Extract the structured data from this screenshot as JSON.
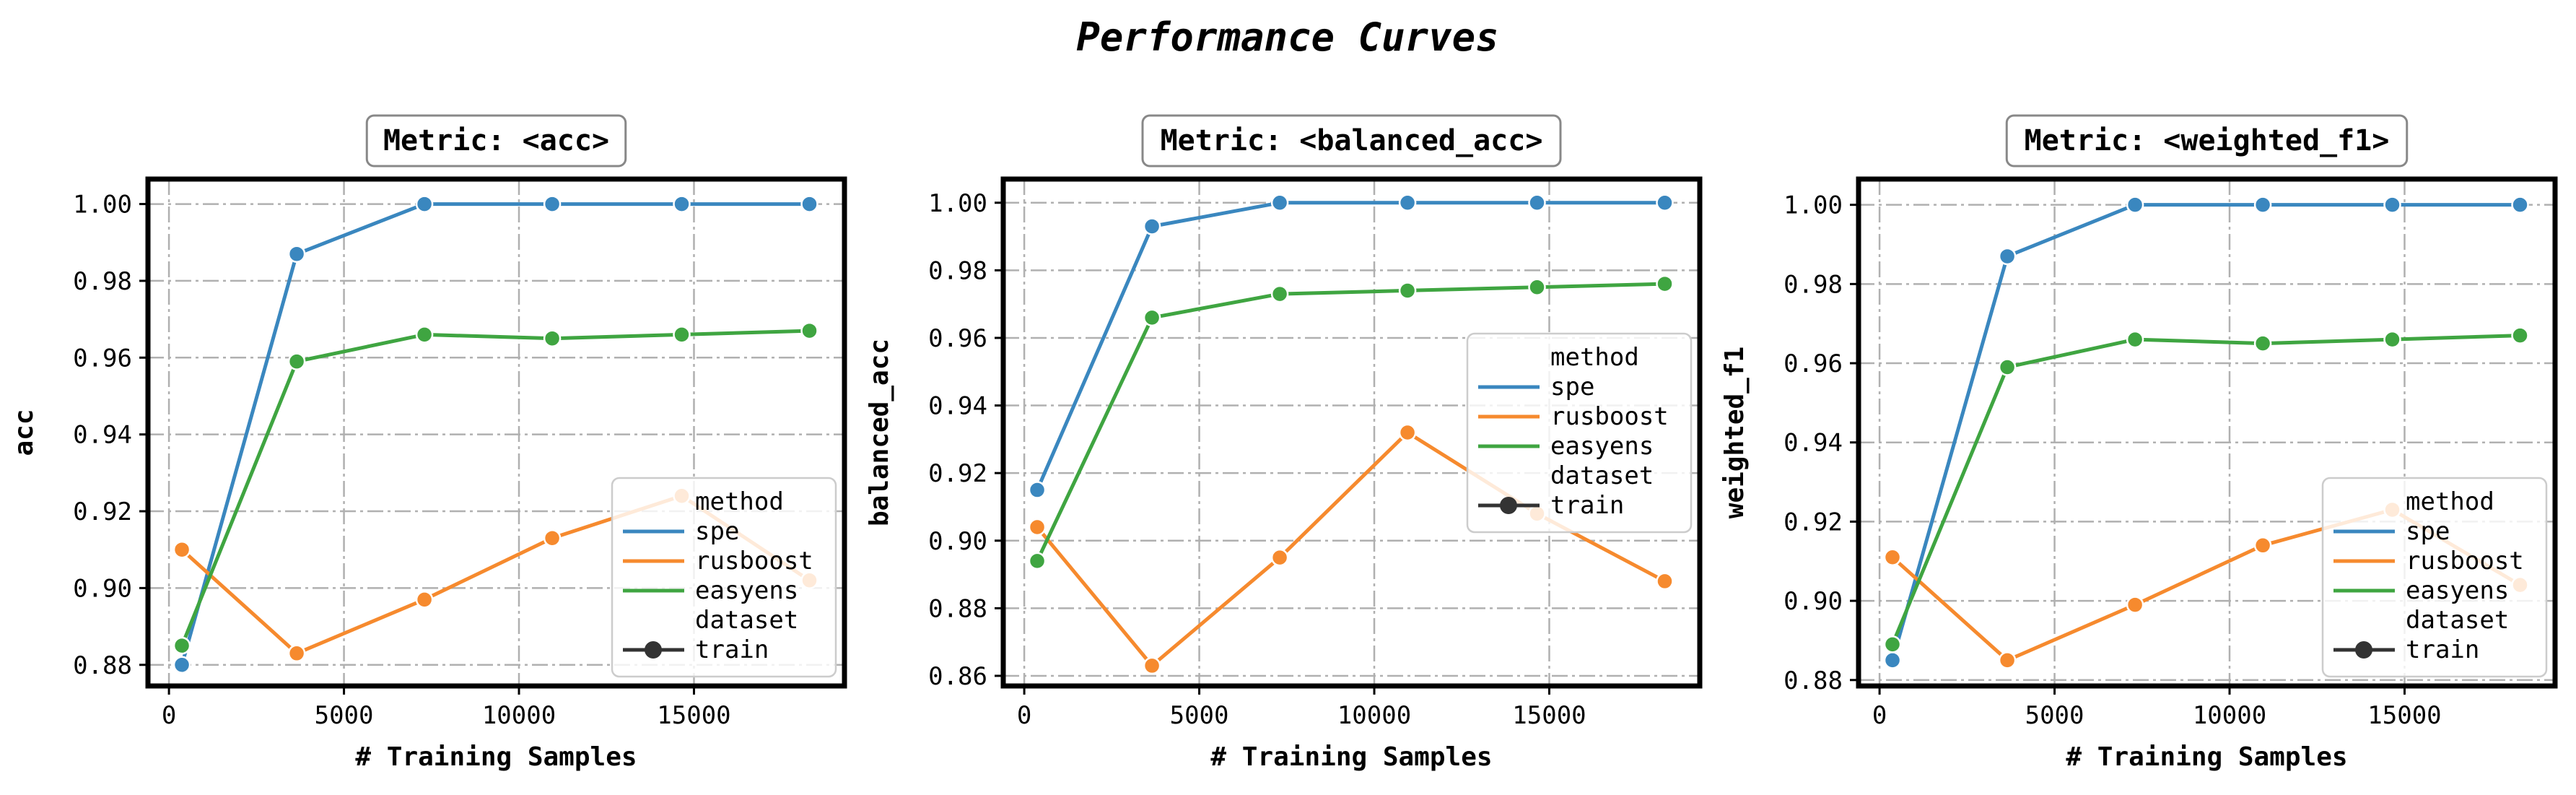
{
  "figure_title": "Performance Curves",
  "colors": {
    "spe": "#3a87bf",
    "rusboost": "#f68a2e",
    "easyens": "#3fa541",
    "dataset_marker": "#333333"
  },
  "chart_data": [
    {
      "type": "line",
      "title": "Metric: <acc>",
      "xlabel": "# Training Samples",
      "ylabel": "acc",
      "xlim": [
        -600,
        19300
      ],
      "ylim": [
        0.8745,
        1.0065
      ],
      "xticks": [
        0,
        5000,
        10000,
        15000
      ],
      "xtick_labels": [
        "0",
        "5000",
        "10000",
        "15000"
      ],
      "yticks": [
        0.88,
        0.9,
        0.92,
        0.94,
        0.96,
        0.98,
        1.0
      ],
      "ytick_labels": [
        "0.88",
        "0.90",
        "0.92",
        "0.94",
        "0.96",
        "0.98",
        "1.00"
      ],
      "grid": true,
      "legend_position": "lower-right",
      "legend": {
        "title1": "method",
        "entries": [
          "spe",
          "rusboost",
          "easyens"
        ],
        "title2": "dataset",
        "marker_entry": "train"
      },
      "series": [
        {
          "name": "spe",
          "x": [
            370,
            3650,
            7300,
            10950,
            14650,
            18300
          ],
          "y": [
            0.88,
            0.987,
            1.0,
            1.0,
            1.0,
            1.0
          ]
        },
        {
          "name": "rusboost",
          "x": [
            370,
            3650,
            7300,
            10950,
            14650,
            18300
          ],
          "y": [
            0.91,
            0.883,
            0.897,
            0.913,
            0.924,
            0.902
          ]
        },
        {
          "name": "easyens",
          "x": [
            370,
            3650,
            7300,
            10950,
            14650,
            18300
          ],
          "y": [
            0.885,
            0.959,
            0.966,
            0.965,
            0.966,
            0.967
          ]
        }
      ]
    },
    {
      "type": "line",
      "title": "Metric: <balanced_acc>",
      "xlabel": "# Training Samples",
      "ylabel": "balanced_acc",
      "xlim": [
        -600,
        19300
      ],
      "ylim": [
        0.857,
        1.007
      ],
      "xticks": [
        0,
        5000,
        10000,
        15000
      ],
      "xtick_labels": [
        "0",
        "5000",
        "10000",
        "15000"
      ],
      "yticks": [
        0.86,
        0.88,
        0.9,
        0.92,
        0.94,
        0.96,
        0.98,
        1.0
      ],
      "ytick_labels": [
        "0.86",
        "0.88",
        "0.90",
        "0.92",
        "0.94",
        "0.96",
        "0.98",
        "1.00"
      ],
      "grid": true,
      "legend_position": "center-right",
      "legend": {
        "title1": "method",
        "entries": [
          "spe",
          "rusboost",
          "easyens"
        ],
        "title2": "dataset",
        "marker_entry": "train"
      },
      "series": [
        {
          "name": "spe",
          "x": [
            370,
            3650,
            7300,
            10950,
            14650,
            18300
          ],
          "y": [
            0.915,
            0.993,
            1.0,
            1.0,
            1.0,
            1.0
          ]
        },
        {
          "name": "rusboost",
          "x": [
            370,
            3650,
            7300,
            10950,
            14650,
            18300
          ],
          "y": [
            0.904,
            0.863,
            0.895,
            0.932,
            0.908,
            0.888
          ]
        },
        {
          "name": "easyens",
          "x": [
            370,
            3650,
            7300,
            10950,
            14650,
            18300
          ],
          "y": [
            0.894,
            0.966,
            0.973,
            0.974,
            0.975,
            0.976
          ]
        }
      ]
    },
    {
      "type": "line",
      "title": "Metric: <weighted_f1>",
      "xlabel": "# Training Samples",
      "ylabel": "weighted_f1",
      "xlim": [
        -600,
        19300
      ],
      "ylim": [
        0.8785,
        1.0065
      ],
      "xticks": [
        0,
        5000,
        10000,
        15000
      ],
      "xtick_labels": [
        "0",
        "5000",
        "10000",
        "15000"
      ],
      "yticks": [
        0.88,
        0.9,
        0.92,
        0.94,
        0.96,
        0.98,
        1.0
      ],
      "ytick_labels": [
        "0.88",
        "0.90",
        "0.92",
        "0.94",
        "0.96",
        "0.98",
        "1.00"
      ],
      "grid": true,
      "legend_position": "lower-right",
      "legend": {
        "title1": "method",
        "entries": [
          "spe",
          "rusboost",
          "easyens"
        ],
        "title2": "dataset",
        "marker_entry": "train"
      },
      "series": [
        {
          "name": "spe",
          "x": [
            370,
            3650,
            7300,
            10950,
            14650,
            18300
          ],
          "y": [
            0.885,
            0.987,
            1.0,
            1.0,
            1.0,
            1.0
          ]
        },
        {
          "name": "rusboost",
          "x": [
            370,
            3650,
            7300,
            10950,
            14650,
            18300
          ],
          "y": [
            0.911,
            0.885,
            0.899,
            0.914,
            0.923,
            0.904
          ]
        },
        {
          "name": "easyens",
          "x": [
            370,
            3650,
            7300,
            10950,
            14650,
            18300
          ],
          "y": [
            0.889,
            0.959,
            0.966,
            0.965,
            0.966,
            0.967
          ]
        }
      ]
    }
  ]
}
